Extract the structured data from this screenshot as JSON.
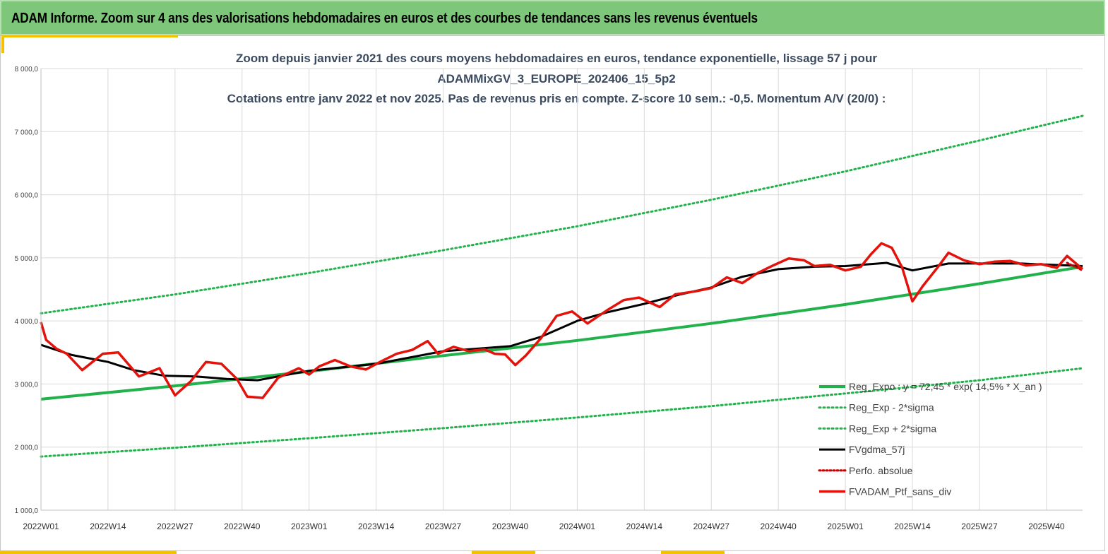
{
  "header": {
    "title": "ADAM Informe. Zoom sur 4 ans des valorisations hebdomadaires en euros et des courbes de tendances sans les revenus éventuels"
  },
  "colors": {
    "header_bg": "#7dc67a",
    "accent": "#f2c200",
    "reg_exp": "#22b24c",
    "gdma": "#000000",
    "ptf": "#e3120b",
    "perfo": "#cc0000"
  },
  "chart_data": {
    "type": "line",
    "title_lines": [
      "Zoom depuis janvier 2021 des cours moyens hebdomadaires  en euros, tendance exponentielle, lissage 57 j pour",
      "ADAMMixGV_3_EUROPE_202406_15_5p2",
      "Cotations entre janv 2022 et nov 2025. Pas de revenus pris en compte. Z-score 10 sem.: -0,5. Momentum A/V (20/0) :"
    ],
    "ylim": [
      1000,
      8000
    ],
    "y_ticks": [
      "1 000,0",
      "2 000,0",
      "3 000,0",
      "4 000,0",
      "5 000,0",
      "6 000,0",
      "7 000,0",
      "8 000,0"
    ],
    "y_tick_values": [
      1000,
      2000,
      3000,
      4000,
      5000,
      6000,
      7000,
      8000
    ],
    "xlim": [
      0,
      202
    ],
    "x_ticks": [
      "2022W01",
      "2022W14",
      "2022W27",
      "2022W40",
      "2023W01",
      "2023W14",
      "2023W27",
      "2023W40",
      "2024W01",
      "2024W14",
      "2024W27",
      "2024W40",
      "2025W01",
      "2025W14",
      "2025W27",
      "2025W40"
    ],
    "x_tick_values": [
      0,
      13,
      26,
      39,
      52,
      65,
      78,
      91,
      104,
      117,
      130,
      143,
      156,
      169,
      182,
      195
    ],
    "grid": true,
    "legend_position": "bottom-right",
    "series": [
      {
        "name": "Reg_Expo : y = 72,45 * exp( 14,5% *  X_an )",
        "style": "solid-thick",
        "x": [
          0,
          26,
          52,
          78,
          104,
          130,
          156,
          182,
          202
        ],
        "y": [
          2760,
          2970,
          3200,
          3450,
          3690,
          3960,
          4260,
          4590,
          4860
        ]
      },
      {
        "name": "Reg_Exp - 2*sigma",
        "style": "dotted",
        "x": [
          0,
          26,
          52,
          78,
          104,
          130,
          156,
          182,
          202
        ],
        "y": [
          1850,
          1990,
          2140,
          2300,
          2470,
          2650,
          2850,
          3060,
          3250
        ]
      },
      {
        "name": "Reg_Exp + 2*sigma",
        "style": "dotted",
        "x": [
          0,
          26,
          52,
          78,
          104,
          130,
          156,
          182,
          202
        ],
        "y": [
          4120,
          4420,
          4760,
          5120,
          5500,
          5920,
          6370,
          6860,
          7250
        ]
      },
      {
        "name": "FVgdma_57j",
        "style": "solid-thick",
        "x": [
          0,
          6,
          13,
          18,
          24,
          30,
          36,
          42,
          52,
          65,
          78,
          91,
          97,
          104,
          110,
          117,
          124,
          130,
          136,
          143,
          150,
          156,
          164,
          169,
          176,
          182,
          190,
          196,
          202
        ],
        "y": [
          3620,
          3460,
          3350,
          3220,
          3130,
          3120,
          3080,
          3060,
          3210,
          3320,
          3520,
          3600,
          3750,
          4000,
          4140,
          4270,
          4420,
          4530,
          4700,
          4820,
          4860,
          4870,
          4920,
          4800,
          4910,
          4910,
          4910,
          4890,
          4870
        ]
      },
      {
        "name": "Perfo. absolue",
        "style": "dotted",
        "x": [
          199,
          200,
          201,
          202
        ],
        "y": [
          4920,
          4880,
          4840,
          4800
        ]
      },
      {
        "name": "FVADAM_Ptf_sans_div",
        "style": "solid-thick",
        "x": [
          0,
          1,
          3,
          5,
          8,
          12,
          15,
          19,
          23,
          26,
          29,
          32,
          35,
          38,
          40,
          43,
          46,
          50,
          52,
          54,
          57,
          60,
          63,
          66,
          69,
          72,
          75,
          77,
          80,
          83,
          86,
          88,
          90,
          92,
          94,
          97,
          100,
          103,
          106,
          110,
          113,
          116,
          120,
          123,
          127,
          130,
          133,
          136,
          139,
          142,
          145,
          148,
          150,
          153,
          156,
          159,
          161,
          163,
          165,
          167,
          169,
          171,
          174,
          176,
          179,
          182,
          185,
          188,
          191,
          194,
          197,
          199,
          202
        ],
        "y": [
          3980,
          3700,
          3560,
          3480,
          3220,
          3480,
          3500,
          3120,
          3250,
          2820,
          3040,
          3350,
          3320,
          3080,
          2800,
          2780,
          3100,
          3250,
          3150,
          3280,
          3380,
          3280,
          3230,
          3360,
          3480,
          3540,
          3680,
          3480,
          3590,
          3520,
          3550,
          3480,
          3470,
          3300,
          3450,
          3730,
          4080,
          4150,
          3960,
          4180,
          4330,
          4370,
          4220,
          4420,
          4470,
          4520,
          4690,
          4600,
          4760,
          4880,
          4990,
          4960,
          4870,
          4890,
          4800,
          4860,
          5060,
          5230,
          5160,
          4850,
          4310,
          4550,
          4860,
          5080,
          4960,
          4900,
          4940,
          4950,
          4880,
          4900,
          4840,
          5030,
          4820
        ]
      }
    ]
  }
}
